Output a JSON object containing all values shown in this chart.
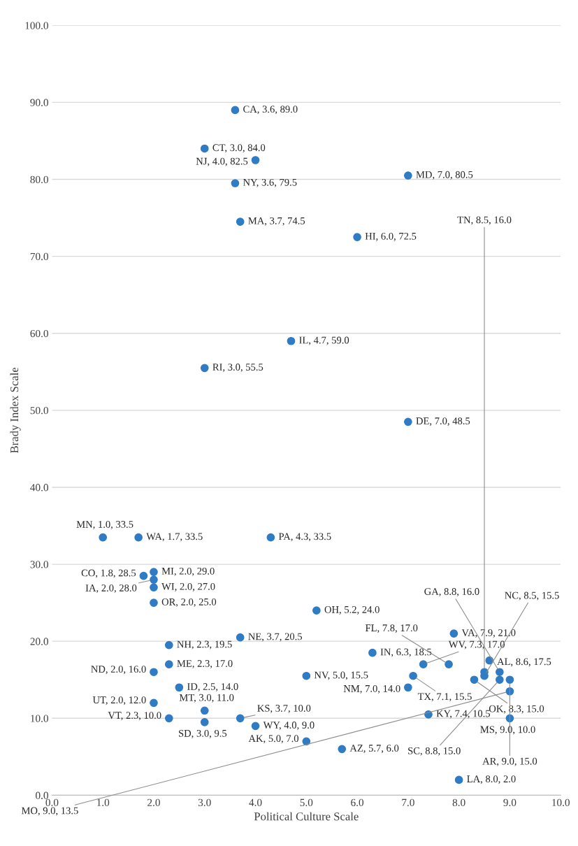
{
  "chart_data": {
    "type": "scatter",
    "xlabel": "Political Culture Scale",
    "ylabel": "Brady Index Scale",
    "xlim": [
      0,
      10
    ],
    "ylim": [
      0,
      100
    ],
    "xticks": [
      {
        "value": 0,
        "label": "0.0"
      },
      {
        "value": 1,
        "label": "1.0"
      },
      {
        "value": 2,
        "label": "2.0"
      },
      {
        "value": 3,
        "label": "3.0"
      },
      {
        "value": 4,
        "label": "4.0"
      },
      {
        "value": 5,
        "label": "5.0"
      },
      {
        "value": 6,
        "label": "6.0"
      },
      {
        "value": 7,
        "label": "7.0"
      },
      {
        "value": 8,
        "label": "8.0"
      },
      {
        "value": 9,
        "label": "9.0"
      },
      {
        "value": 10,
        "label": "10.0"
      }
    ],
    "yticks": [
      {
        "value": 0,
        "label": "0.0"
      },
      {
        "value": 10,
        "label": "10.0"
      },
      {
        "value": 20,
        "label": "20.0"
      },
      {
        "value": 30,
        "label": "30.0"
      },
      {
        "value": 40,
        "label": "40.0"
      },
      {
        "value": 50,
        "label": "50.0"
      },
      {
        "value": 60,
        "label": "60.0"
      },
      {
        "value": 70,
        "label": "70.0"
      },
      {
        "value": 80,
        "label": "80.0"
      },
      {
        "value": 90,
        "label": "90.0"
      },
      {
        "value": 100,
        "label": "100.0"
      }
    ],
    "grid": "y",
    "marker": "circle",
    "series": [
      {
        "color": "#2f7bc4",
        "x": [
          1.0,
          1.7,
          1.8,
          2.0,
          2.0,
          2.0,
          2.0,
          2.3,
          2.0,
          2.0,
          2.3,
          2.3,
          2.5,
          3.0,
          3.0,
          3.0,
          3.0,
          3.6,
          3.6,
          3.7,
          4.0,
          3.7,
          3.7,
          4.0,
          4.3,
          4.7,
          5.2,
          5.0,
          5.0,
          5.7,
          6.0,
          6.3,
          7.0,
          7.0,
          7.3,
          7.1,
          7.0,
          7.4,
          7.8,
          7.9,
          8.3,
          8.0,
          8.6,
          8.5,
          8.5,
          8.8,
          8.8,
          9.0,
          9.0,
          9.0
        ],
        "values": [
          33.5,
          33.5,
          28.5,
          29.0,
          28.0,
          27.0,
          25.0,
          19.5,
          16.0,
          12.0,
          17.0,
          10.0,
          14.0,
          11.0,
          9.5,
          84.0,
          55.5,
          89.0,
          79.5,
          74.5,
          82.5,
          20.5,
          10.0,
          9.0,
          33.5,
          59.0,
          24.0,
          15.5,
          7.0,
          6.0,
          72.5,
          18.5,
          80.5,
          48.5,
          17.0,
          15.5,
          14.0,
          10.5,
          17.0,
          21.0,
          15.0,
          2.0,
          17.5,
          15.5,
          16.0,
          16.0,
          15.0,
          15.0,
          13.5,
          10.0
        ],
        "value_labels": [
          "MN, 1.0, 33.5",
          "WA, 1.7, 33.5",
          "CO, 1.8, 28.5",
          "MI, 2.0, 29.0",
          "IA, 2.0, 28.0",
          "WI, 2.0, 27.0",
          "OR, 2.0, 25.0",
          "NH, 2.3, 19.5",
          "ND, 2.0, 16.0",
          "UT, 2.0, 12.0",
          "ME, 2.3, 17.0",
          "VT, 2.3, 10.0",
          "ID, 2.5, 14.0",
          "MT, 3.0, 11.0",
          "SD, 3.0, 9.5",
          "CT, 3.0, 84.0",
          "RI, 3.0, 55.5",
          "CA, 3.6, 89.0",
          "NY, 3.6, 79.5",
          "MA, 3.7, 74.5",
          "NJ, 4.0, 82.5",
          "NE, 3.7, 20.5",
          "KS, 3.7, 10.0",
          "WY, 4.0, 9.0",
          "PA, 4.3, 33.5",
          "IL, 4.7, 59.0",
          "OH, 5.2, 24.0",
          "NV, 5.0, 15.5",
          "AK, 5.0, 7.0",
          "AZ, 5.7, 6.0",
          "HI, 6.0, 72.5",
          "IN, 6.3, 18.5",
          "MD, 7.0, 80.5",
          "DE, 7.0, 48.5",
          "WV, 7.3, 17.0",
          "TX, 7.1, 15.5",
          "NM, 7.0, 14.0",
          "KY, 7.4, 10.5",
          "FL, 7.8, 17.0",
          "VA, 7.9, 21.0",
          "OK, 8.3, 15.0",
          "LA, 8.0, 2.0",
          "AL, 8.6, 17.5",
          "NC, 8.5, 15.5",
          "TN, 8.5, 16.0",
          "GA, 8.8, 16.0",
          "SC, 8.8, 15.0",
          "AR, 9.0, 15.0",
          "MO, 9.0, 13.5",
          "MS, 9.0, 10.0"
        ]
      }
    ]
  }
}
